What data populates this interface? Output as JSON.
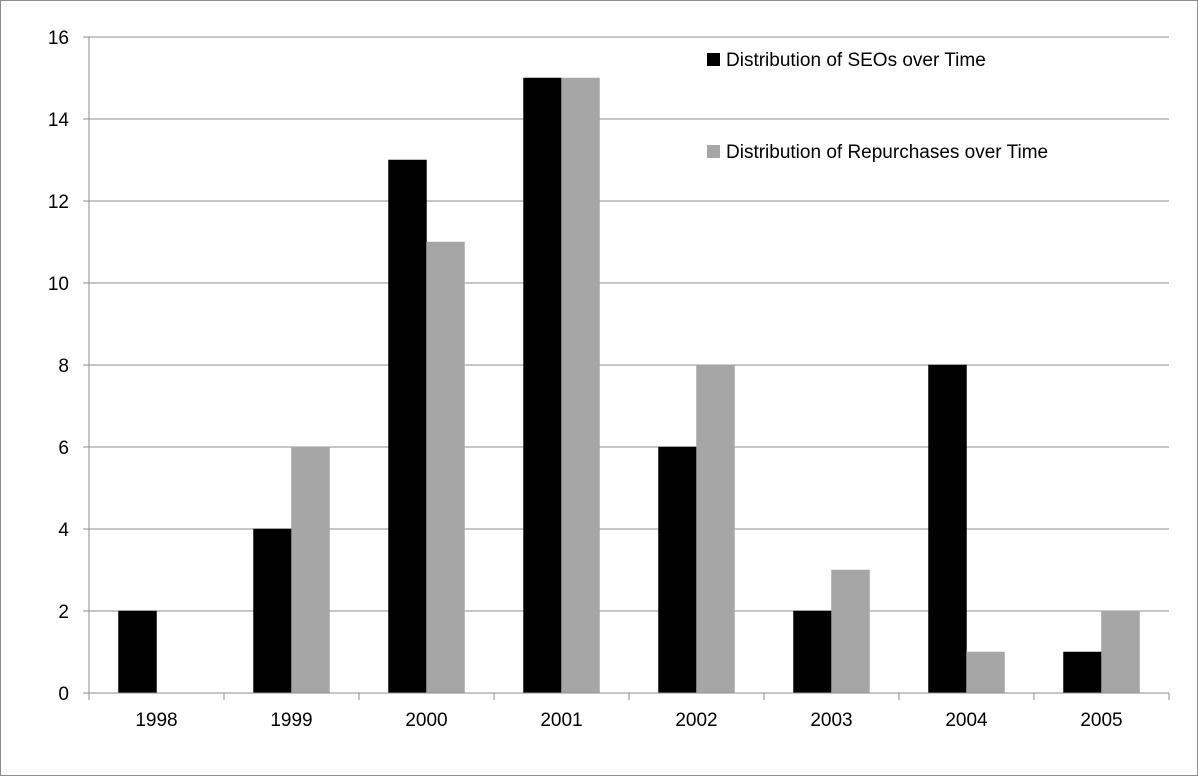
{
  "chart_data": {
    "type": "bar",
    "title": "",
    "xlabel": "",
    "ylabel": "",
    "categories": [
      "1998",
      "1999",
      "2000",
      "2001",
      "2002",
      "2003",
      "2004",
      "2005"
    ],
    "series": [
      {
        "name": "Distribution of SEOs over Time",
        "color": "#000000",
        "values": [
          2,
          4,
          13,
          15,
          6,
          2,
          8,
          1
        ]
      },
      {
        "name": "Distribution of Repurchases over Time",
        "color": "#a6a6a6",
        "values": [
          0,
          6,
          11,
          15,
          8,
          3,
          1,
          2
        ]
      }
    ],
    "ylim": [
      0,
      16
    ],
    "yticks": [
      0,
      2,
      4,
      6,
      8,
      10,
      12,
      14,
      16
    ],
    "grid": "horizontal",
    "legend": "top-right"
  }
}
